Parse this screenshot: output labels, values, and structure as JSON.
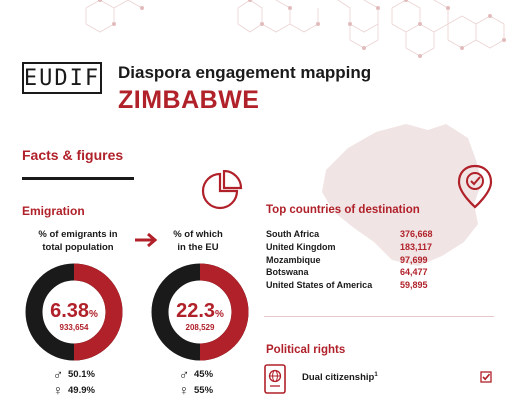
{
  "header": {
    "logo_text": "EUDIF",
    "title": "Diaspora engagement mapping",
    "country": "ZIMBABWE"
  },
  "section": {
    "facts_title": "Facts & figures"
  },
  "emigration": {
    "title": "Emigration",
    "total": {
      "label_line1": "% of emigrants in",
      "label_line2": "total population",
      "percent_value": "6.38",
      "percent_sign": "%",
      "count": "933,654",
      "share": 0.0638,
      "male": "50.1%",
      "female": "49.9%"
    },
    "eu": {
      "label_line1": "% of which",
      "label_line2": "in the EU",
      "percent_value": "22.3",
      "percent_sign": "%",
      "count": "208,529",
      "share": 0.223,
      "male": "45%",
      "female": "55%"
    }
  },
  "destinations": {
    "title": "Top countries of destination",
    "rows": [
      {
        "country": "South Africa",
        "value": "376,668"
      },
      {
        "country": "United Kingdom",
        "value": "183,117"
      },
      {
        "country": "Mozambique",
        "value": "97,699"
      },
      {
        "country": "Botswana",
        "value": "64,477"
      },
      {
        "country": "United States of America",
        "value": "59,895"
      }
    ]
  },
  "political_rights": {
    "title": "Political rights",
    "dual_citizenship_label": "Dual citizenship",
    "dual_citizenship_note": "1",
    "dual_citizenship_checked": true
  },
  "icons": {
    "male": "male-symbol-icon",
    "female": "female-symbol-icon",
    "arrow": "arrow-right-icon",
    "pie": "pie-chart-icon",
    "pin": "location-pin-icon",
    "passport": "passport-icon",
    "check": "checkbox-checked-icon"
  },
  "colors": {
    "accent": "#b0212a",
    "dark": "#1a1a1a",
    "map": "#f1e4e4"
  }
}
